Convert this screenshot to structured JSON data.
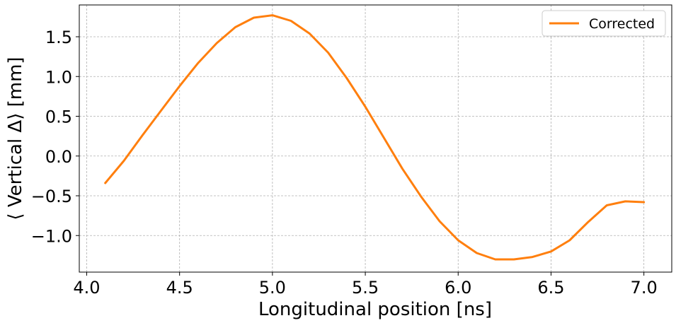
{
  "chart_data": {
    "type": "line",
    "xlabel": "Longitudinal position [ns]",
    "ylabel": "⟨ Vertical Δ⟩ [mm]",
    "xlim": [
      3.96,
      7.15
    ],
    "ylim": [
      -1.46,
      1.9
    ],
    "xticks": [
      4.0,
      4.5,
      5.0,
      5.5,
      6.0,
      6.5,
      7.0
    ],
    "xtick_labels": [
      "4.0",
      "4.5",
      "5.0",
      "5.5",
      "6.0",
      "6.5",
      "7.0"
    ],
    "yticks": [
      1.5,
      1.0,
      0.5,
      0.0,
      -0.5,
      -1.0
    ],
    "ytick_labels": [
      "1.5",
      "1.0",
      "0.5",
      "0.0",
      "−0.5",
      "−1.0"
    ],
    "grid": true,
    "legend_position": "top-right",
    "series": [
      {
        "name": "Corrected",
        "color": "#ff7f0e",
        "x": [
          4.1,
          4.2,
          4.3,
          4.4,
          4.5,
          4.6,
          4.7,
          4.8,
          4.9,
          5.0,
          5.1,
          5.2,
          5.3,
          5.4,
          5.5,
          5.6,
          5.7,
          5.8,
          5.9,
          6.0,
          6.1,
          6.2,
          6.3,
          6.4,
          6.5,
          6.6,
          6.7,
          6.8,
          6.9,
          7.0
        ],
        "y": [
          -0.34,
          -0.06,
          0.26,
          0.57,
          0.88,
          1.17,
          1.42,
          1.62,
          1.74,
          1.77,
          1.7,
          1.54,
          1.3,
          0.98,
          0.62,
          0.23,
          -0.16,
          -0.51,
          -0.82,
          -1.06,
          -1.22,
          -1.3,
          -1.3,
          -1.27,
          -1.2,
          -1.06,
          -0.83,
          -0.62,
          -0.57,
          -0.58
        ]
      }
    ]
  }
}
